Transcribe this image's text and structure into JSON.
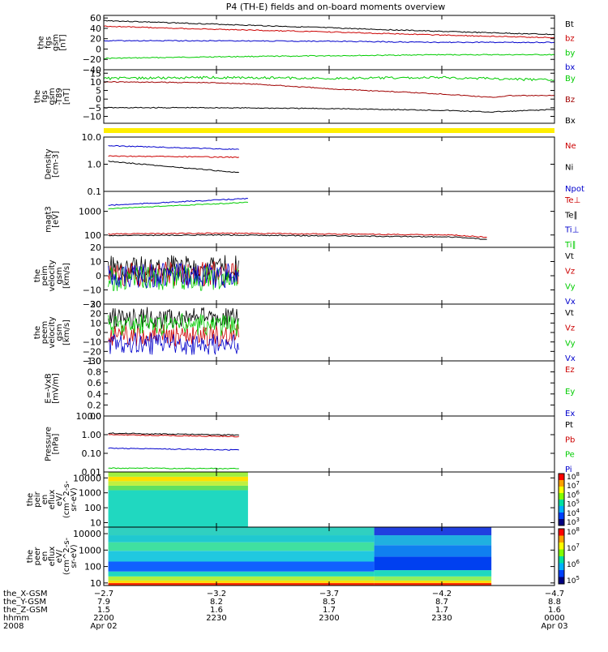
{
  "title": "P4 (TH-E) fields and on-board moments overview",
  "colors": {
    "black": "#000000",
    "red": "#cc0000",
    "darkred": "#a00000",
    "green": "#00cc00",
    "blue": "#0000cc",
    "yellow": "#ffee00"
  },
  "chart_data": [
    {
      "type": "line",
      "ylabel": [
        "the",
        "fgs",
        "gsm",
        "[nT]"
      ],
      "yticks": [
        -40,
        -20,
        0,
        20,
        40,
        60
      ],
      "ylim": [
        -40,
        65
      ],
      "legend": [
        "Bt",
        "bz",
        "by",
        "bx"
      ],
      "series": [
        {
          "name": "Bt",
          "color": "black",
          "x": [
            0,
            0.5,
            1.0,
            1.5,
            2.0
          ],
          "y": [
            55,
            48,
            41,
            34,
            28
          ]
        },
        {
          "name": "bz",
          "color": "red",
          "x": [
            0,
            0.5,
            1.0,
            1.5,
            2.0
          ],
          "y": [
            44,
            38,
            33,
            27,
            22
          ]
        },
        {
          "name": "by",
          "color": "green",
          "x": [
            0,
            0.5,
            1.0,
            1.5,
            2.0
          ],
          "y": [
            -18,
            -15,
            -13,
            -11,
            -11
          ]
        },
        {
          "name": "bx",
          "color": "blue",
          "x": [
            0,
            0.5,
            1.0,
            1.5,
            2.0
          ],
          "y": [
            16,
            16,
            15,
            13,
            13
          ]
        }
      ]
    },
    {
      "type": "line",
      "ylabel": [
        "the",
        "fgs",
        "gsm",
        "-T89",
        "[nT]"
      ],
      "yticks": [
        -10,
        -5,
        0,
        5,
        10,
        15
      ],
      "ylim": [
        -14,
        17
      ],
      "legend": [
        "By",
        "Bz",
        "Bx"
      ],
      "series": [
        {
          "name": "By",
          "color": "green",
          "x": [
            0,
            0.5,
            1.0,
            1.5,
            2.0
          ],
          "y": [
            12,
            12.5,
            12,
            12.5,
            11
          ]
        },
        {
          "name": "Bz",
          "color": "darkred",
          "x": [
            0,
            0.5,
            0.7,
            1.0,
            1.5,
            1.72,
            1.8,
            2.0
          ],
          "y": [
            10,
            9.5,
            8.5,
            6,
            3,
            1,
            2,
            2
          ]
        },
        {
          "name": "Bx",
          "color": "black",
          "x": [
            0,
            0.5,
            1.0,
            1.5,
            1.72,
            2.0
          ],
          "y": [
            -5,
            -5,
            -5.5,
            -6.5,
            -7.5,
            -6
          ]
        }
      ]
    },
    {
      "type": "line",
      "ylabel": [
        "Density",
        "[cm-3]"
      ],
      "yscale": "log",
      "yticks": [
        0.1,
        1.0,
        10.0
      ],
      "ytick_labels": [
        "0.1",
        "1.0",
        "10.0"
      ],
      "ylim": [
        0.1,
        10.0
      ],
      "legend": [
        "Ne",
        "Ni",
        "Npot"
      ],
      "series": [
        {
          "name": "Ne",
          "color": "red",
          "x": [
            0.02,
            0.6
          ],
          "y": [
            2.0,
            1.8
          ]
        },
        {
          "name": "Ni",
          "color": "black",
          "x": [
            0.02,
            0.3,
            0.6
          ],
          "y": [
            1.3,
            0.8,
            0.5
          ]
        },
        {
          "name": "Npot",
          "color": "blue",
          "x": [
            0.02,
            0.6
          ],
          "y": [
            4.8,
            3.5
          ]
        }
      ]
    },
    {
      "type": "line",
      "ylabel": [
        "magt3",
        "[eV]"
      ],
      "yscale": "log",
      "yticks": [
        100,
        1000
      ],
      "ytick_labels": [
        "100",
        "1000"
      ],
      "ylim": [
        30,
        7000
      ],
      "legend": [
        "Te⊥",
        "Te∥",
        "Ti⊥",
        "Ti∥"
      ],
      "series": [
        {
          "name": "Te⊥",
          "color": "red",
          "x": [
            0.02,
            0.5,
            1.0,
            1.55,
            1.7
          ],
          "y": [
            110,
            120,
            110,
            100,
            80
          ]
        },
        {
          "name": "Te∥",
          "color": "black",
          "x": [
            0.02,
            0.5,
            1.0,
            1.55,
            1.7
          ],
          "y": [
            95,
            100,
            92,
            82,
            65
          ]
        },
        {
          "name": "Ti⊥",
          "color": "blue",
          "x": [
            0.02,
            0.64
          ],
          "y": [
            1800,
            3500
          ]
        },
        {
          "name": "Ti∥",
          "color": "green",
          "x": [
            0.02,
            0.64
          ],
          "y": [
            1300,
            2400
          ]
        }
      ]
    },
    {
      "type": "line",
      "ylabel": [
        "the",
        "peim",
        "velocity",
        "gsm",
        "[km/s]"
      ],
      "yticks": [
        -20,
        -10,
        0,
        10,
        20
      ],
      "ylim": [
        -20,
        20
      ],
      "legend": [
        "Vt",
        "Vz",
        "Vy",
        "Vx"
      ],
      "series": [
        {
          "name": "Vt",
          "color": "black",
          "x": [
            0.02,
            0.6
          ],
          "y": [
            6,
            6
          ]
        },
        {
          "name": "Vz",
          "color": "red",
          "x": [
            0.02,
            0.6
          ],
          "y": [
            1,
            1
          ]
        },
        {
          "name": "Vy",
          "color": "green",
          "x": [
            0.02,
            0.6
          ],
          "y": [
            -2,
            -2
          ]
        },
        {
          "name": "Vx",
          "color": "blue",
          "x": [
            0.02,
            0.6
          ],
          "y": [
            0,
            0
          ]
        }
      ]
    },
    {
      "type": "line",
      "ylabel": [
        "the",
        "peem",
        "velocity",
        "gsm",
        "[km/s]"
      ],
      "yticks": [
        -30,
        -20,
        -10,
        0,
        10,
        20,
        30
      ],
      "ylim": [
        -30,
        30
      ],
      "legend": [
        "Vt",
        "Vz",
        "Vy",
        "Vx"
      ],
      "series": [
        {
          "name": "Vt",
          "color": "black",
          "x": [
            0.02,
            0.6
          ],
          "y": [
            15,
            15
          ]
        },
        {
          "name": "Vz",
          "color": "red",
          "x": [
            0.02,
            0.6
          ],
          "y": [
            -3,
            -3
          ]
        },
        {
          "name": "Vy",
          "color": "green",
          "x": [
            0.02,
            0.6
          ],
          "y": [
            8,
            8
          ]
        },
        {
          "name": "Vx",
          "color": "blue",
          "x": [
            0.02,
            0.6
          ],
          "y": [
            -12,
            -12
          ]
        }
      ]
    },
    {
      "type": "line",
      "ylabel": [
        "E=-VxB",
        "[mV/m]"
      ],
      "yticks": [
        0.0,
        0.2,
        0.4,
        0.6,
        0.8,
        1.0
      ],
      "ytick_labels": [
        "0.0",
        "0.2",
        "0.4",
        "0.6",
        "0.8",
        "1.0"
      ],
      "ylim": [
        0,
        1.0
      ],
      "legend": [
        "Ez",
        "Ey",
        "Ex"
      ],
      "series": []
    },
    {
      "type": "line",
      "ylabel": [
        "Pressure",
        "[nPa]"
      ],
      "yscale": "log",
      "yticks": [
        0.01,
        0.1,
        1.0,
        10.0
      ],
      "ytick_labels": [
        "0.01",
        "0.10",
        "1.00",
        "10.00"
      ],
      "ylim": [
        0.01,
        10.0
      ],
      "legend": [
        "Pt",
        "Pb",
        "Pe",
        "Pi"
      ],
      "series": [
        {
          "name": "Pt",
          "color": "black",
          "x": [
            0.02,
            0.6
          ],
          "y": [
            1.2,
            0.95
          ]
        },
        {
          "name": "Pb",
          "color": "red",
          "x": [
            0.02,
            0.6
          ],
          "y": [
            1.0,
            0.8
          ]
        },
        {
          "name": "Pe",
          "color": "green",
          "x": [
            0.02,
            0.6
          ],
          "y": [
            0.016,
            0.015
          ]
        },
        {
          "name": "Pi",
          "color": "blue",
          "x": [
            0.02,
            0.6
          ],
          "y": [
            0.19,
            0.15
          ]
        }
      ]
    },
    {
      "type": "heatmap",
      "ylabel": [
        "the",
        "peir",
        "en",
        "eflux",
        "eV/",
        "(cm^2-s-",
        "sr-eV)"
      ],
      "yscale": "log",
      "yticks": [
        10,
        100,
        1000,
        10000
      ],
      "ytick_labels": [
        "10",
        "100",
        "1000",
        "10000"
      ],
      "ylim": [
        5,
        25000
      ],
      "x_extent": [
        0.02,
        0.64
      ],
      "colorbar_labels": [
        "10^8",
        "10^7",
        "10^6",
        "10^5",
        "10^4",
        "10^3"
      ],
      "bands": [
        {
          "y": [
            5,
            1500
          ],
          "color": "#20d8c0"
        },
        {
          "y": [
            1500,
            3000
          ],
          "color": "#60e060"
        },
        {
          "y": [
            3000,
            6000
          ],
          "color": "#c0f040"
        },
        {
          "y": [
            6000,
            12000
          ],
          "color": "#ffe000"
        },
        {
          "y": [
            12000,
            25000
          ],
          "color": "#a0f040"
        }
      ]
    },
    {
      "type": "heatmap",
      "ylabel": [
        "the",
        "peer",
        "en",
        "eflux",
        "eV/",
        "(cm^2-s-",
        "sr-eV)"
      ],
      "yscale": "log",
      "yticks": [
        10,
        100,
        1000,
        10000
      ],
      "ytick_labels": [
        "10",
        "100",
        "1000",
        "10000"
      ],
      "ylim": [
        7,
        25000
      ],
      "x_extent": [
        0.02,
        1.72
      ],
      "colorbar_labels": [
        "10^8",
        "10^7",
        "10^6",
        "10^5"
      ],
      "segments": [
        {
          "x": [
            0.02,
            1.2
          ],
          "bands": [
            {
              "y": [
                7,
                10
              ],
              "color": "#ff3000"
            },
            {
              "y": [
                10,
                14
              ],
              "color": "#ffe000"
            },
            {
              "y": [
                14,
                25
              ],
              "color": "#b0f040"
            },
            {
              "y": [
                25,
                50
              ],
              "color": "#20d8c0"
            },
            {
              "y": [
                50,
                200
              ],
              "color": "#1060ff"
            },
            {
              "y": [
                200,
                900
              ],
              "color": "#20c8e0"
            },
            {
              "y": [
                900,
                3000
              ],
              "color": "#40e0a0"
            },
            {
              "y": [
                3000,
                8000
              ],
              "color": "#20c8d0"
            },
            {
              "y": [
                8000,
                25000
              ],
              "color": "#30d0c0"
            }
          ]
        },
        {
          "x": [
            1.2,
            1.72
          ],
          "bands": [
            {
              "y": [
                7,
                10
              ],
              "color": "#ff3000"
            },
            {
              "y": [
                10,
                14
              ],
              "color": "#ffe000"
            },
            {
              "y": [
                14,
                25
              ],
              "color": "#90f060"
            },
            {
              "y": [
                25,
                60
              ],
              "color": "#20d8c0"
            },
            {
              "y": [
                60,
                400
              ],
              "color": "#0040f0"
            },
            {
              "y": [
                400,
                2000
              ],
              "color": "#1080f0"
            },
            {
              "y": [
                2000,
                8000
              ],
              "color": "#20b0e0"
            },
            {
              "y": [
                8000,
                25000
              ],
              "color": "#2040e0"
            }
          ]
        }
      ]
    }
  ],
  "x_axis": {
    "xlim": [
      0,
      2.0
    ],
    "ticks": [
      0,
      0.5,
      1.0,
      1.5,
      2.0
    ],
    "row_labels": [
      "the_X-GSM",
      "the_Y-GSM",
      "the_Z-GSM",
      "hhmm",
      "2008"
    ],
    "columns": [
      [
        "-2.7",
        "7.9",
        "1.5",
        "2200",
        "Apr 02"
      ],
      [
        "-3.2",
        "8.2",
        "1.6",
        "2230",
        ""
      ],
      [
        "-3.7",
        "8.5",
        "1.7",
        "2300",
        ""
      ],
      [
        "-4.2",
        "8.7",
        "1.7",
        "2330",
        ""
      ],
      [
        "-4.7",
        "8.8",
        "1.6",
        "0000",
        "Apr 03"
      ]
    ]
  }
}
